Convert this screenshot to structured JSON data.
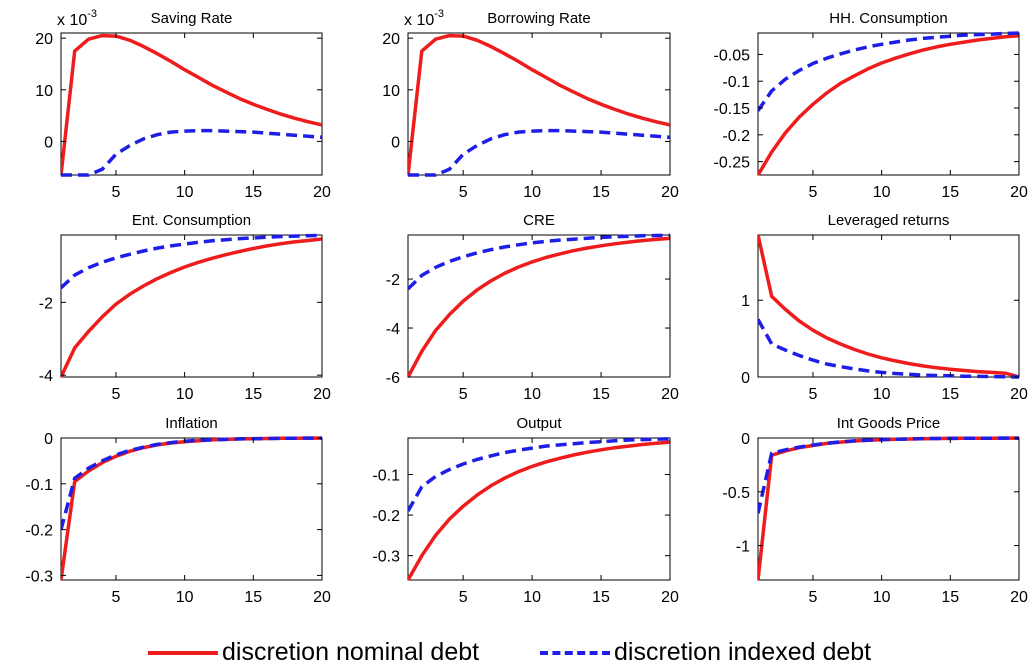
{
  "colors": {
    "nominal": "#ee1c1c",
    "indexed": "#1e1ee8",
    "axis": "#000000"
  },
  "legend": {
    "placement": "bottom",
    "nominal_label": "discretion nominal debt",
    "indexed_label": "discretion indexed debt"
  },
  "chart_data": [
    {
      "type": "line",
      "title": "Saving Rate",
      "multiplier": "x 10-3",
      "xlim": [
        1,
        20
      ],
      "ylim": [
        -6.5,
        21
      ],
      "xticks": [
        "5",
        "10",
        "15",
        "20"
      ],
      "yticks": [
        "0",
        "10",
        "20"
      ],
      "x": [
        1,
        2,
        3,
        4,
        5,
        6,
        7,
        8,
        9,
        10,
        11,
        12,
        13,
        14,
        15,
        16,
        17,
        18,
        19,
        20
      ],
      "series": [
        {
          "name": "discretion nominal debt",
          "values": [
            -6.5,
            17.5,
            19.8,
            20.5,
            20.4,
            19.6,
            18.4,
            17.0,
            15.5,
            13.9,
            12.4,
            10.9,
            9.6,
            8.3,
            7.2,
            6.2,
            5.3,
            4.5,
            3.8,
            3.2
          ]
        },
        {
          "name": "discretion indexed debt",
          "values": [
            -6.5,
            -6.5,
            -6.5,
            -5.4,
            -2.5,
            -0.8,
            0.5,
            1.3,
            1.8,
            2.0,
            2.1,
            2.1,
            2.0,
            1.9,
            1.8,
            1.6,
            1.4,
            1.2,
            1.0,
            0.8
          ]
        }
      ]
    },
    {
      "type": "line",
      "title": "Borrowing Rate",
      "multiplier": "x 10-3",
      "xlim": [
        1,
        20
      ],
      "ylim": [
        -6.5,
        21
      ],
      "xticks": [
        "5",
        "10",
        "15",
        "20"
      ],
      "yticks": [
        "0",
        "10",
        "20"
      ],
      "x": [
        1,
        2,
        3,
        4,
        5,
        6,
        7,
        8,
        9,
        10,
        11,
        12,
        13,
        14,
        15,
        16,
        17,
        18,
        19,
        20
      ],
      "series": [
        {
          "name": "discretion nominal debt",
          "values": [
            -6.5,
            17.5,
            19.8,
            20.5,
            20.4,
            19.6,
            18.4,
            17.0,
            15.5,
            13.9,
            12.4,
            10.9,
            9.6,
            8.3,
            7.2,
            6.2,
            5.3,
            4.5,
            3.8,
            3.2
          ]
        },
        {
          "name": "discretion indexed debt",
          "values": [
            -6.5,
            -6.5,
            -6.5,
            -5.4,
            -2.5,
            -0.8,
            0.5,
            1.3,
            1.8,
            2.0,
            2.1,
            2.1,
            2.0,
            1.9,
            1.8,
            1.6,
            1.4,
            1.2,
            1.0,
            0.8
          ]
        }
      ]
    },
    {
      "type": "line",
      "title": "HH. Consumption",
      "xlim": [
        1,
        20
      ],
      "ylim": [
        -0.275,
        -0.01
      ],
      "xticks": [
        "5",
        "10",
        "15",
        "20"
      ],
      "yticks": [
        "-0.05",
        "-0.1",
        "-0.15",
        "-0.2",
        "-0.25"
      ],
      "ytickvals": [
        -0.05,
        -0.1,
        -0.15,
        -0.2,
        -0.25
      ],
      "x": [
        1,
        2,
        3,
        4,
        5,
        6,
        7,
        8,
        9,
        10,
        11,
        12,
        13,
        14,
        15,
        16,
        17,
        18,
        19,
        20
      ],
      "series": [
        {
          "name": "discretion nominal debt",
          "values": [
            -0.275,
            -0.232,
            -0.196,
            -0.167,
            -0.143,
            -0.122,
            -0.104,
            -0.09,
            -0.077,
            -0.066,
            -0.057,
            -0.049,
            -0.042,
            -0.036,
            -0.031,
            -0.027,
            -0.023,
            -0.02,
            -0.017,
            -0.015
          ]
        },
        {
          "name": "discretion indexed debt",
          "values": [
            -0.155,
            -0.118,
            -0.096,
            -0.08,
            -0.067,
            -0.057,
            -0.049,
            -0.042,
            -0.036,
            -0.031,
            -0.027,
            -0.023,
            -0.02,
            -0.018,
            -0.016,
            -0.014,
            -0.013,
            -0.012,
            -0.011,
            -0.01
          ]
        }
      ]
    },
    {
      "type": "line",
      "title": "Ent. Consumption",
      "xlim": [
        1,
        20
      ],
      "ylim": [
        -4.05,
        -0.15
      ],
      "xticks": [
        "5",
        "10",
        "15",
        "20"
      ],
      "yticks": [
        "-2",
        "-4"
      ],
      "ytickvals": [
        -2,
        -4
      ],
      "x": [
        1,
        2,
        3,
        4,
        5,
        6,
        7,
        8,
        9,
        10,
        11,
        12,
        13,
        14,
        15,
        16,
        17,
        18,
        19,
        20
      ],
      "series": [
        {
          "name": "discretion nominal debt",
          "values": [
            -4.05,
            -3.25,
            -2.8,
            -2.4,
            -2.05,
            -1.78,
            -1.55,
            -1.35,
            -1.18,
            -1.03,
            -0.9,
            -0.79,
            -0.69,
            -0.6,
            -0.52,
            -0.45,
            -0.39,
            -0.34,
            -0.3,
            -0.26
          ]
        },
        {
          "name": "discretion indexed debt",
          "values": [
            -1.6,
            -1.25,
            -1.05,
            -0.9,
            -0.78,
            -0.68,
            -0.59,
            -0.51,
            -0.45,
            -0.4,
            -0.35,
            -0.31,
            -0.28,
            -0.25,
            -0.23,
            -0.21,
            -0.19,
            -0.18,
            -0.17,
            -0.16
          ]
        }
      ]
    },
    {
      "type": "line",
      "title": "CRE",
      "xlim": [
        1,
        20
      ],
      "ylim": [
        -6.0,
        -0.2
      ],
      "xticks": [
        "5",
        "10",
        "15",
        "20"
      ],
      "yticks": [
        "-2",
        "-4",
        "-6"
      ],
      "ytickvals": [
        -2,
        -4,
        -6
      ],
      "x": [
        1,
        2,
        3,
        4,
        5,
        6,
        7,
        8,
        9,
        10,
        11,
        12,
        13,
        14,
        15,
        16,
        17,
        18,
        19,
        20
      ],
      "series": [
        {
          "name": "discretion nominal debt",
          "values": [
            -6.0,
            -4.95,
            -4.1,
            -3.45,
            -2.9,
            -2.45,
            -2.08,
            -1.77,
            -1.51,
            -1.3,
            -1.12,
            -0.97,
            -0.84,
            -0.73,
            -0.64,
            -0.56,
            -0.49,
            -0.43,
            -0.38,
            -0.34
          ]
        },
        {
          "name": "discretion indexed debt",
          "values": [
            -2.4,
            -1.85,
            -1.52,
            -1.28,
            -1.09,
            -0.93,
            -0.8,
            -0.69,
            -0.6,
            -0.52,
            -0.46,
            -0.41,
            -0.37,
            -0.33,
            -0.3,
            -0.27,
            -0.25,
            -0.23,
            -0.22,
            -0.21
          ]
        }
      ]
    },
    {
      "type": "line",
      "title": "Leveraged returns",
      "xlim": [
        1,
        20
      ],
      "ylim": [
        0,
        1.85
      ],
      "xticks": [
        "5",
        "10",
        "15",
        "20"
      ],
      "yticks": [
        "0",
        "1"
      ],
      "ytickvals": [
        0,
        1
      ],
      "x": [
        1,
        2,
        3,
        4,
        5,
        6,
        7,
        8,
        9,
        10,
        11,
        12,
        13,
        14,
        15,
        16,
        17,
        18,
        19,
        20
      ],
      "series": [
        {
          "name": "discretion nominal debt",
          "values": [
            1.85,
            1.05,
            0.88,
            0.73,
            0.61,
            0.51,
            0.43,
            0.36,
            0.3,
            0.25,
            0.21,
            0.175,
            0.145,
            0.12,
            0.1,
            0.085,
            0.07,
            0.06,
            0.05,
            0.0
          ]
        },
        {
          "name": "discretion indexed debt",
          "values": [
            0.75,
            0.43,
            0.35,
            0.28,
            0.22,
            0.17,
            0.135,
            0.105,
            0.08,
            0.06,
            0.045,
            0.035,
            0.025,
            0.02,
            0.015,
            0.01,
            0.008,
            0.005,
            0.003,
            0.0
          ]
        }
      ]
    },
    {
      "type": "line",
      "title": "Inflation",
      "xlim": [
        1,
        20
      ],
      "ylim": [
        -0.31,
        0
      ],
      "xticks": [
        "5",
        "10",
        "15",
        "20"
      ],
      "yticks": [
        "0",
        "-0.1",
        "-0.2",
        "-0.3"
      ],
      "ytickvals": [
        0,
        -0.1,
        -0.2,
        -0.3
      ],
      "x": [
        1,
        2,
        3,
        4,
        5,
        6,
        7,
        8,
        9,
        10,
        11,
        12,
        13,
        14,
        15,
        16,
        17,
        18,
        19,
        20
      ],
      "series": [
        {
          "name": "discretion nominal debt",
          "values": [
            -0.31,
            -0.095,
            -0.072,
            -0.054,
            -0.04,
            -0.029,
            -0.021,
            -0.015,
            -0.011,
            -0.008,
            -0.006,
            -0.004,
            -0.003,
            -0.002,
            -0.0015,
            -0.001,
            -0.0007,
            -0.0005,
            -0.0003,
            -0.0002
          ]
        },
        {
          "name": "discretion indexed debt",
          "values": [
            -0.2,
            -0.088,
            -0.066,
            -0.05,
            -0.037,
            -0.027,
            -0.02,
            -0.014,
            -0.01,
            -0.007,
            -0.005,
            -0.004,
            -0.003,
            -0.002,
            -0.0015,
            -0.001,
            -0.0007,
            -0.0005,
            -0.0003,
            -0.0002
          ]
        }
      ]
    },
    {
      "type": "line",
      "title": "Output",
      "xlim": [
        1,
        20
      ],
      "ylim": [
        -0.36,
        -0.01
      ],
      "xticks": [
        "5",
        "10",
        "15",
        "20"
      ],
      "yticks": [
        "-0.1",
        "-0.2",
        "-0.3"
      ],
      "ytickvals": [
        -0.1,
        -0.2,
        -0.3
      ],
      "x": [
        1,
        2,
        3,
        4,
        5,
        6,
        7,
        8,
        9,
        10,
        11,
        12,
        13,
        14,
        15,
        16,
        17,
        18,
        19,
        20
      ],
      "series": [
        {
          "name": "discretion nominal debt",
          "values": [
            -0.36,
            -0.3,
            -0.25,
            -0.21,
            -0.178,
            -0.151,
            -0.128,
            -0.109,
            -0.093,
            -0.08,
            -0.069,
            -0.06,
            -0.052,
            -0.045,
            -0.039,
            -0.034,
            -0.03,
            -0.026,
            -0.023,
            -0.02
          ]
        },
        {
          "name": "discretion indexed debt",
          "values": [
            -0.19,
            -0.13,
            -0.105,
            -0.088,
            -0.074,
            -0.063,
            -0.054,
            -0.046,
            -0.04,
            -0.035,
            -0.03,
            -0.027,
            -0.024,
            -0.021,
            -0.019,
            -0.017,
            -0.015,
            -0.014,
            -0.013,
            -0.012
          ]
        }
      ]
    },
    {
      "type": "line",
      "title": "Int Goods Price",
      "xlim": [
        1,
        20
      ],
      "ylim": [
        -1.32,
        0
      ],
      "xticks": [
        "5",
        "10",
        "15",
        "20"
      ],
      "yticks": [
        "0",
        "-0.5",
        "-1"
      ],
      "ytickvals": [
        0,
        -0.5,
        -1
      ],
      "x": [
        1,
        2,
        3,
        4,
        5,
        6,
        7,
        8,
        9,
        10,
        11,
        12,
        13,
        14,
        15,
        16,
        17,
        18,
        19,
        20
      ],
      "series": [
        {
          "name": "discretion nominal debt",
          "values": [
            -1.32,
            -0.16,
            -0.12,
            -0.09,
            -0.07,
            -0.05,
            -0.038,
            -0.028,
            -0.021,
            -0.016,
            -0.012,
            -0.009,
            -0.007,
            -0.005,
            -0.004,
            -0.003,
            -0.002,
            -0.0015,
            -0.001,
            -0.0007
          ]
        },
        {
          "name": "discretion indexed debt",
          "values": [
            -0.7,
            -0.14,
            -0.11,
            -0.085,
            -0.065,
            -0.048,
            -0.036,
            -0.027,
            -0.02,
            -0.015,
            -0.011,
            -0.008,
            -0.006,
            -0.005,
            -0.004,
            -0.003,
            -0.002,
            -0.0015,
            -0.001,
            -0.0007
          ]
        }
      ]
    }
  ]
}
